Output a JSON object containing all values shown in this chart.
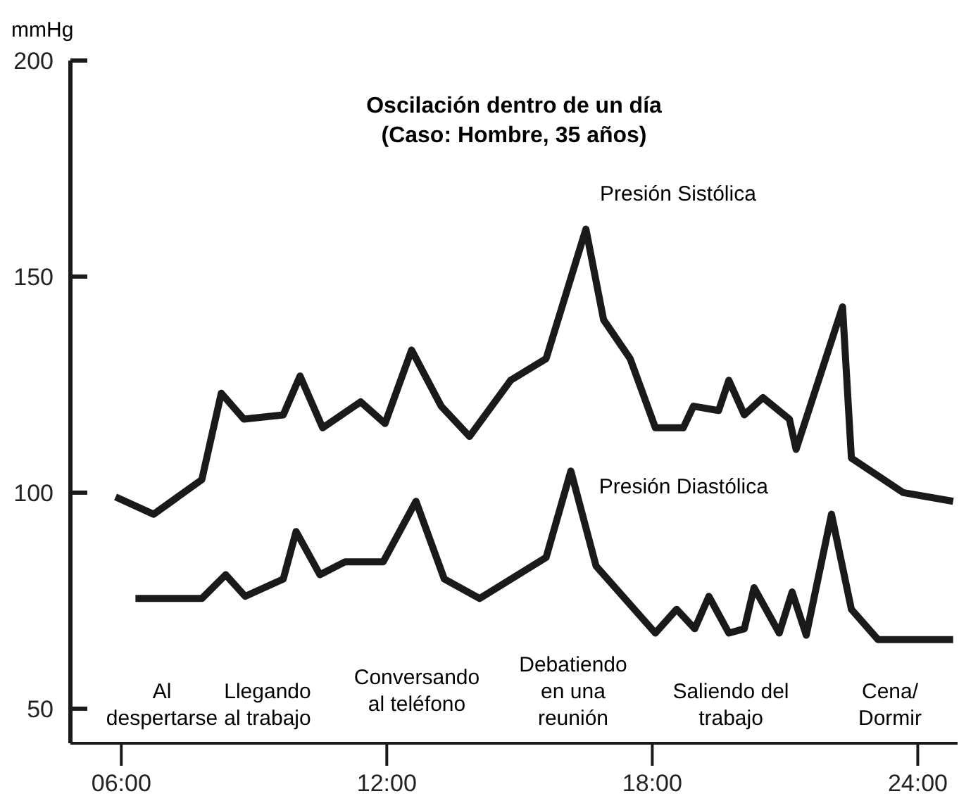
{
  "chart_data": {
    "type": "line",
    "title": "Oscilación dentro de un día",
    "subtitle": "(Caso: Hombre, 35 años)",
    "ylabel": "mmHg",
    "xlim": [
      4.85,
      24.9
    ],
    "ylim": [
      42,
      200
    ],
    "xticks": [
      {
        "value": 6,
        "label": "06:00"
      },
      {
        "value": 12,
        "label": "12:00"
      },
      {
        "value": 18,
        "label": "18:00"
      },
      {
        "value": 24,
        "label": "24:00"
      }
    ],
    "yticks": [
      50,
      100,
      150,
      200
    ],
    "series": [
      {
        "name": "Presión Sistólica",
        "color": "#1a1a1a",
        "x": [
          5.87,
          6.73,
          7.82,
          8.26,
          8.77,
          9.66,
          10.04,
          10.55,
          11.41,
          11.96,
          12.56,
          13.23,
          13.87,
          14.8,
          15.6,
          16.5,
          16.9,
          17.5,
          18.07,
          18.7,
          18.93,
          19.5,
          19.73,
          20.08,
          20.5,
          21.1,
          21.25,
          22.3,
          22.5,
          23.67,
          24.8
        ],
        "values": [
          99,
          95,
          103,
          123,
          117,
          118,
          127,
          115,
          121,
          116,
          133,
          120,
          113,
          126,
          131,
          161,
          140,
          131,
          115,
          115,
          120,
          119,
          126,
          118,
          122,
          117,
          110,
          143,
          108,
          100,
          98
        ]
      },
      {
        "name": "Presión Diastólica",
        "color": "#1a1a1a",
        "x": [
          6.32,
          7.82,
          8.36,
          8.8,
          9.66,
          9.95,
          10.49,
          11.06,
          11.92,
          12.66,
          13.3,
          14.1,
          15.6,
          16.16,
          16.73,
          18.07,
          18.55,
          18.96,
          19.28,
          19.73,
          20.08,
          20.3,
          20.87,
          21.16,
          21.48,
          22.05,
          22.5,
          23.1,
          24.8
        ],
        "values": [
          75.5,
          75.5,
          81,
          76,
          80,
          91,
          81,
          84,
          84,
          98,
          80,
          75.5,
          85,
          105,
          83,
          67.5,
          73,
          68.5,
          76,
          67.5,
          68.5,
          78,
          67.5,
          77,
          67,
          95,
          73,
          66,
          66
        ]
      }
    ],
    "annotations": [
      "Al\ndespertarse",
      "Llegando\nal trabajo",
      "Conversando\nal teléfono",
      "Debatiendo\nen una\nreunión",
      "Saliendo del\ntrabajo",
      "Cena/\nDormir"
    ]
  }
}
